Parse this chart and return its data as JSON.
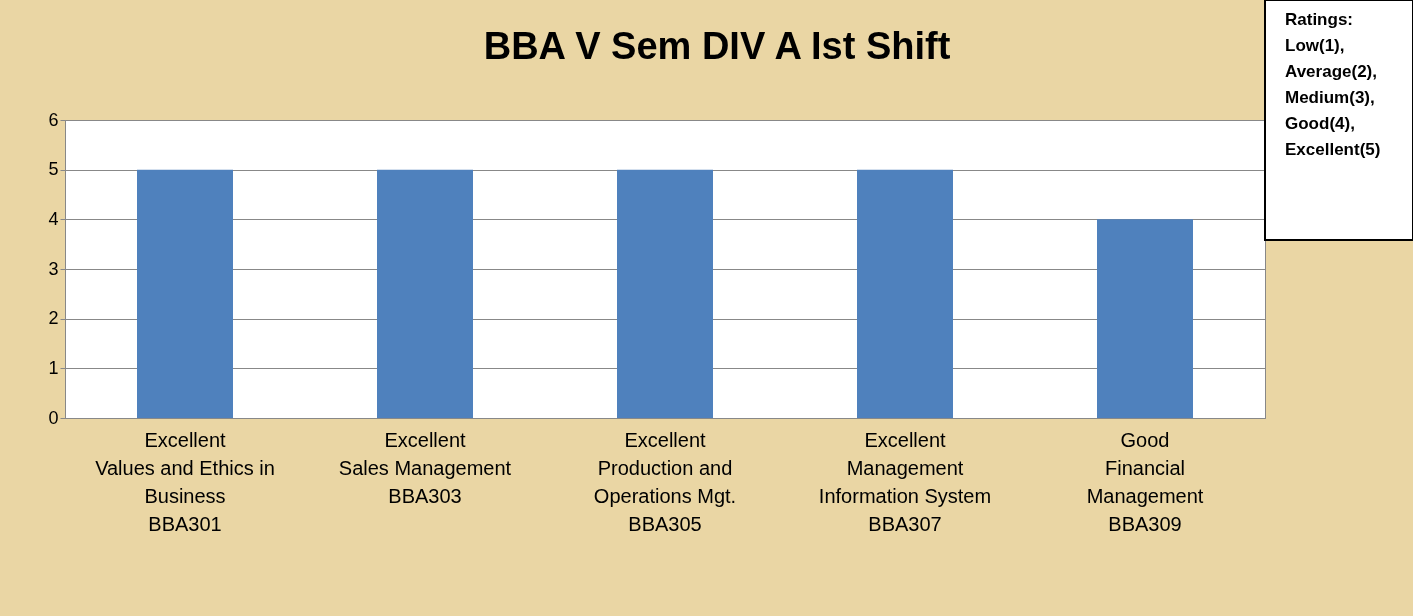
{
  "chart_data": {
    "type": "bar",
    "title": "BBA V Sem DIV A Ist Shift",
    "categories": [
      "Excellent\nValues and Ethics in\nBusiness\nBBA301",
      "Excellent\nSales Management\n\nBBA303",
      "Excellent\nProduction and\nOperations Mgt.\nBBA305",
      "Excellent\nManagement\nInformation System\nBBA307",
      "Good\nFinancial\nManagement\nBBA309"
    ],
    "values": [
      5,
      5,
      5,
      5,
      4
    ],
    "color": "#4f81bd",
    "ylim": [
      0,
      6
    ],
    "yticks": [
      0,
      1,
      2,
      3,
      4,
      5,
      6
    ],
    "grid": "y",
    "annotations": [
      "Ratings:\nLow(1),\nAverage(2),\nMedium(3),\nGood(4),\nExcellent(5)"
    ]
  }
}
